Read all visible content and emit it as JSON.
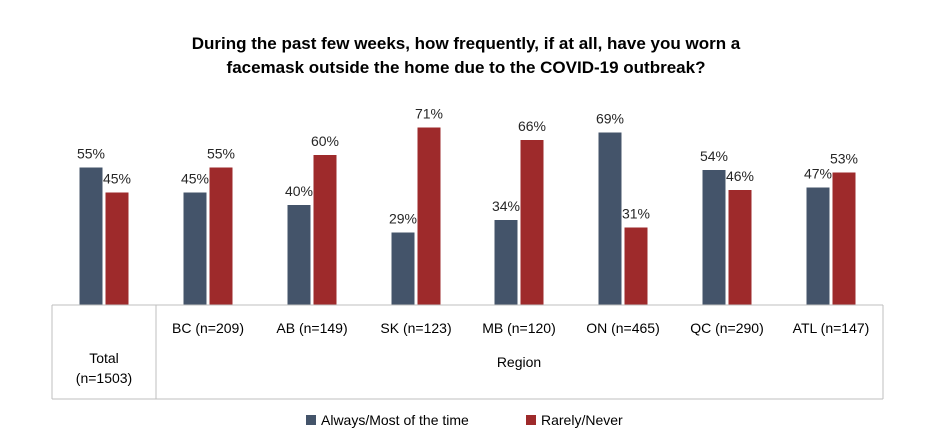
{
  "chart_data": {
    "type": "bar",
    "title_line1": "During the past few weeks, how frequently, if at all, have you worn a",
    "title_line2": "facemask outside the home due to the COVID-19 outbreak?",
    "categories": [
      "Total (n=1503)",
      "BC (n=209)",
      "AB (n=149)",
      "SK (n=123)",
      "MB (n=120)",
      "ON (n=465)",
      "QC (n=290)",
      "ATL (n=147)"
    ],
    "total_label_lines": [
      "Total",
      "(n=1503)"
    ],
    "group_label": "Region",
    "series": [
      {
        "name": "Always/Most of the time",
        "color": "#44546a",
        "values": [
          55,
          45,
          40,
          29,
          34,
          69,
          54,
          47
        ]
      },
      {
        "name": "Rarely/Never",
        "color": "#9e2a2b",
        "values": [
          45,
          55,
          60,
          71,
          66,
          31,
          46,
          53
        ]
      }
    ],
    "data_labels": [
      [
        "55%",
        "45%",
        "40%",
        "29%",
        "34%",
        "69%",
        "54%",
        "47%"
      ],
      [
        "45%",
        "55%",
        "60%",
        "71%",
        "66%",
        "31%",
        "46%",
        "53%"
      ]
    ],
    "ylim": [
      0,
      100
    ],
    "unit": "%",
    "grid": false,
    "legend_position": "bottom"
  }
}
